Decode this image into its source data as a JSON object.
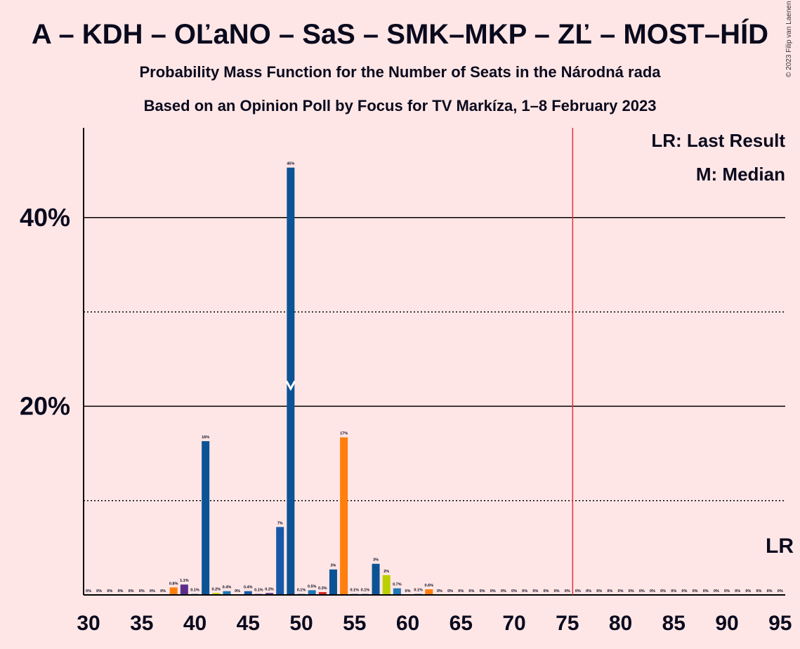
{
  "title": "A – KDH – OĽaNO – SaS – SMK–MKP – ZĽ – MOST–HÍD",
  "subtitle1": "Probability Mass Function for the Number of Seats in the Národná rada",
  "subtitle2": "Based on an Opinion Poll by Focus for TV Markíza, 1–8 February 2023",
  "copyright": "© 2023 Filip van Laenen",
  "legend": {
    "lr": "LR: Last Result",
    "m": "M: Median"
  },
  "lr_marker": "LR",
  "median_marker": "M",
  "colors": {
    "background": "#FFE6E6",
    "dark_blue": "#0B5394",
    "orange": "#FF7F0E",
    "purple": "#5B2C8A",
    "blue": "#1F77B4",
    "red": "#D62728",
    "yellow_green": "#BCCF02",
    "mid_blue": "#1759A8",
    "lr_line": "#E8303A"
  },
  "chart_data": {
    "type": "bar",
    "ylabel": "",
    "xlabel": "",
    "y_ticks": [
      "20%",
      "40%"
    ],
    "x_ticks": [
      "30",
      "35",
      "40",
      "45",
      "50",
      "55",
      "60",
      "65",
      "70",
      "75",
      "80",
      "85",
      "90",
      "95"
    ],
    "xlim": [
      30,
      95
    ],
    "ylim": [
      0,
      49.5
    ],
    "solid_gridlines": [
      20,
      40
    ],
    "dotted_gridlines": [
      10,
      30
    ],
    "last_result_seat": 76,
    "median_seat": 49,
    "median_value": 22,
    "bars": [
      {
        "x": 30,
        "y": 0,
        "label": "0%",
        "color": "#0B5394"
      },
      {
        "x": 31,
        "y": 0,
        "label": "0%",
        "color": "#0B5394"
      },
      {
        "x": 32,
        "y": 0,
        "label": "0%",
        "color": "#0B5394"
      },
      {
        "x": 33,
        "y": 0,
        "label": "0%",
        "color": "#0B5394"
      },
      {
        "x": 34,
        "y": 0,
        "label": "0%",
        "color": "#0B5394"
      },
      {
        "x": 35,
        "y": 0,
        "label": "0%",
        "color": "#0B5394"
      },
      {
        "x": 36,
        "y": 0,
        "label": "0%",
        "color": "#0B5394"
      },
      {
        "x": 37,
        "y": 0,
        "label": "0%",
        "color": "#0B5394"
      },
      {
        "x": 38,
        "y": 0.8,
        "label": "0.8%",
        "color": "#FF7F0E"
      },
      {
        "x": 39,
        "y": 1.1,
        "label": "1.1%",
        "color": "#5B2C8A"
      },
      {
        "x": 40,
        "y": 0.1,
        "label": "0.1%",
        "color": "#0B5394"
      },
      {
        "x": 41,
        "y": 16.3,
        "label": "16%",
        "color": "#0B5394"
      },
      {
        "x": 42,
        "y": 0.2,
        "label": "0.2%",
        "color": "#BCCF02"
      },
      {
        "x": 43,
        "y": 0.4,
        "label": "0.4%",
        "color": "#1F77B4"
      },
      {
        "x": 44,
        "y": 0,
        "label": "0%",
        "color": "#0B5394"
      },
      {
        "x": 45,
        "y": 0.4,
        "label": "0.4%",
        "color": "#1759A8"
      },
      {
        "x": 46,
        "y": 0.1,
        "label": "0.1%",
        "color": "#5B2C8A"
      },
      {
        "x": 47,
        "y": 0.2,
        "label": "0.2%",
        "color": "#5B2C8A"
      },
      {
        "x": 48,
        "y": 7.2,
        "label": "7%",
        "color": "#1759A8"
      },
      {
        "x": 49,
        "y": 45.3,
        "label": "45%",
        "color": "#0B5394"
      },
      {
        "x": 50,
        "y": 0.1,
        "label": "0.1%",
        "color": "#0B5394"
      },
      {
        "x": 51,
        "y": 0.5,
        "label": "0.5%",
        "color": "#1F77B4"
      },
      {
        "x": 52,
        "y": 0.3,
        "label": "0.3%",
        "color": "#D62728"
      },
      {
        "x": 53,
        "y": 2.7,
        "label": "3%",
        "color": "#0B5394"
      },
      {
        "x": 54,
        "y": 16.7,
        "label": "17%",
        "color": "#FF7F0E"
      },
      {
        "x": 55,
        "y": 0.1,
        "label": "0.1%",
        "color": "#0B5394"
      },
      {
        "x": 56,
        "y": 0.1,
        "label": "0.1%",
        "color": "#0B5394"
      },
      {
        "x": 57,
        "y": 3.3,
        "label": "3%",
        "color": "#0B5394"
      },
      {
        "x": 58,
        "y": 2.1,
        "label": "2%",
        "color": "#BCCF02"
      },
      {
        "x": 59,
        "y": 0.7,
        "label": "0.7%",
        "color": "#1F77B4"
      },
      {
        "x": 60,
        "y": 0,
        "label": "0%",
        "color": "#0B5394"
      },
      {
        "x": 61,
        "y": 0.1,
        "label": "0.1%",
        "color": "#0B5394"
      },
      {
        "x": 62,
        "y": 0.6,
        "label": "0.6%",
        "color": "#FF7F0E"
      },
      {
        "x": 63,
        "y": 0,
        "label": "0%",
        "color": "#0B5394"
      },
      {
        "x": 64,
        "y": 0,
        "label": "0%",
        "color": "#0B5394"
      },
      {
        "x": 65,
        "y": 0,
        "label": "0%",
        "color": "#0B5394"
      },
      {
        "x": 66,
        "y": 0,
        "label": "0%",
        "color": "#0B5394"
      },
      {
        "x": 67,
        "y": 0,
        "label": "0%",
        "color": "#0B5394"
      },
      {
        "x": 68,
        "y": 0,
        "label": "0%",
        "color": "#0B5394"
      },
      {
        "x": 69,
        "y": 0,
        "label": "0%",
        "color": "#0B5394"
      },
      {
        "x": 70,
        "y": 0,
        "label": "0%",
        "color": "#0B5394"
      },
      {
        "x": 71,
        "y": 0,
        "label": "0%",
        "color": "#0B5394"
      },
      {
        "x": 72,
        "y": 0,
        "label": "0%",
        "color": "#0B5394"
      },
      {
        "x": 73,
        "y": 0,
        "label": "0%",
        "color": "#0B5394"
      },
      {
        "x": 74,
        "y": 0,
        "label": "0%",
        "color": "#0B5394"
      },
      {
        "x": 75,
        "y": 0,
        "label": "0%",
        "color": "#0B5394"
      },
      {
        "x": 76,
        "y": 0,
        "label": "0%",
        "color": "#0B5394"
      },
      {
        "x": 77,
        "y": 0,
        "label": "0%",
        "color": "#0B5394"
      },
      {
        "x": 78,
        "y": 0,
        "label": "0%",
        "color": "#0B5394"
      },
      {
        "x": 79,
        "y": 0,
        "label": "0%",
        "color": "#0B5394"
      },
      {
        "x": 80,
        "y": 0,
        "label": "0%",
        "color": "#0B5394"
      },
      {
        "x": 81,
        "y": 0,
        "label": "0%",
        "color": "#0B5394"
      },
      {
        "x": 82,
        "y": 0,
        "label": "0%",
        "color": "#0B5394"
      },
      {
        "x": 83,
        "y": 0,
        "label": "0%",
        "color": "#0B5394"
      },
      {
        "x": 84,
        "y": 0,
        "label": "0%",
        "color": "#0B5394"
      },
      {
        "x": 85,
        "y": 0,
        "label": "0%",
        "color": "#0B5394"
      },
      {
        "x": 86,
        "y": 0,
        "label": "0%",
        "color": "#0B5394"
      },
      {
        "x": 87,
        "y": 0,
        "label": "0%",
        "color": "#0B5394"
      },
      {
        "x": 88,
        "y": 0,
        "label": "0%",
        "color": "#0B5394"
      },
      {
        "x": 89,
        "y": 0,
        "label": "0%",
        "color": "#0B5394"
      },
      {
        "x": 90,
        "y": 0,
        "label": "0%",
        "color": "#0B5394"
      },
      {
        "x": 91,
        "y": 0,
        "label": "0%",
        "color": "#0B5394"
      },
      {
        "x": 92,
        "y": 0,
        "label": "0%",
        "color": "#0B5394"
      },
      {
        "x": 93,
        "y": 0,
        "label": "0%",
        "color": "#0B5394"
      },
      {
        "x": 94,
        "y": 0,
        "label": "0%",
        "color": "#0B5394"
      },
      {
        "x": 95,
        "y": 0,
        "label": "0%",
        "color": "#0B5394"
      }
    ]
  }
}
